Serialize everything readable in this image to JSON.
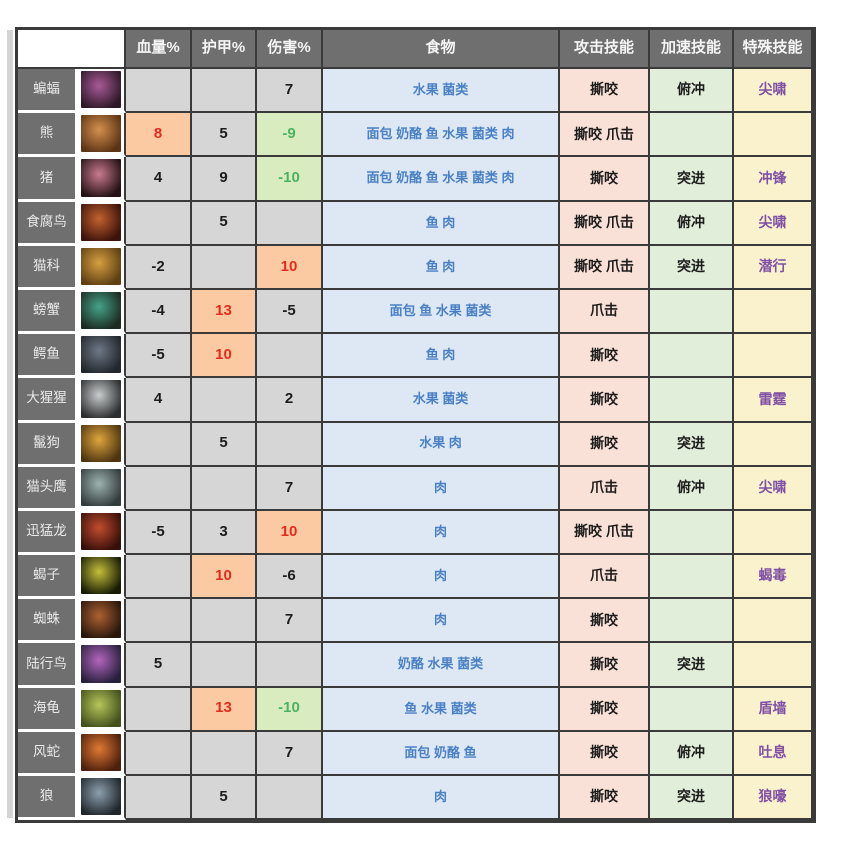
{
  "page": {
    "background": "#ffffff"
  },
  "colors": {
    "header_bg": "#6f6f6f",
    "header_text": "#f5f5f5",
    "label_bg": "#6f6f6f",
    "stat_bg": "#d6d6d6",
    "highlight_positive_bg": "#fbcaa2",
    "highlight_positive_text": "#e62b1e",
    "highlight_negative_bg": "#d9ecc0",
    "highlight_negative_text": "#4bb25f",
    "food_bg": "#dde8f4",
    "food_text": "#4a80c4",
    "attack_bg": "#fae1d7",
    "speed_bg": "#e0eeda",
    "special_bg": "#faf1cd",
    "special_text": "#8050a5",
    "grid_border": "#3a3a3a"
  },
  "table": {
    "headers": {
      "corner": "",
      "health": "血量%",
      "armor": "护甲%",
      "damage": "伤害%",
      "food": "食物",
      "attack": "攻击技能",
      "speed": "加速技能",
      "special": "特殊技能"
    },
    "rows": [
      {
        "name": "蝙蝠",
        "thumb_colors": [
          "#a85a96",
          "#2e1828"
        ],
        "health": "",
        "health_hl": "",
        "armor": "",
        "armor_hl": "",
        "damage": "7",
        "damage_hl": "",
        "food": "水果 菌类",
        "attack": "撕咬",
        "speed": "俯冲",
        "special": "尖啸"
      },
      {
        "name": "熊",
        "thumb_colors": [
          "#d4904e",
          "#5c3414"
        ],
        "health": "8",
        "health_hl": "pos",
        "armor": "5",
        "armor_hl": "",
        "damage": "-9",
        "damage_hl": "neg",
        "food": "面包 奶酪 鱼 水果 菌类 肉",
        "attack": "撕咬 爪击",
        "speed": "",
        "special": ""
      },
      {
        "name": "猪",
        "thumb_colors": [
          "#c97b8e",
          "#241015"
        ],
        "health": "4",
        "health_hl": "",
        "armor": "9",
        "armor_hl": "",
        "damage": "-10",
        "damage_hl": "neg",
        "food": "面包 奶酪 鱼 水果 菌类 肉",
        "attack": "撕咬",
        "speed": "突进",
        "special": "冲锋"
      },
      {
        "name": "食腐鸟",
        "thumb_colors": [
          "#c2622f",
          "#3c120a"
        ],
        "health": "",
        "health_hl": "",
        "armor": "5",
        "armor_hl": "",
        "damage": "",
        "damage_hl": "",
        "food": "鱼 肉",
        "attack": "撕咬 爪击",
        "speed": "俯冲",
        "special": "尖啸"
      },
      {
        "name": "猫科",
        "thumb_colors": [
          "#d6a041",
          "#5e3f12"
        ],
        "health": "-2",
        "health_hl": "",
        "armor": "",
        "armor_hl": "",
        "damage": "10",
        "damage_hl": "pos",
        "food": "鱼 肉",
        "attack": "撕咬 爪击",
        "speed": "突进",
        "special": "潜行"
      },
      {
        "name": "螃蟹",
        "thumb_colors": [
          "#45a287",
          "#1c2a22"
        ],
        "health": "-4",
        "health_hl": "",
        "armor": "13",
        "armor_hl": "pos",
        "damage": "-5",
        "damage_hl": "",
        "food": "面包 鱼 水果 菌类",
        "attack": "爪击",
        "speed": "",
        "special": ""
      },
      {
        "name": "鳄鱼",
        "thumb_colors": [
          "#6e7886",
          "#22262c"
        ],
        "health": "-5",
        "health_hl": "",
        "armor": "10",
        "armor_hl": "pos",
        "damage": "",
        "damage_hl": "",
        "food": "鱼 肉",
        "attack": "撕咬",
        "speed": "",
        "special": ""
      },
      {
        "name": "大猩猩",
        "thumb_colors": [
          "#c9ccce",
          "#2b2d2e"
        ],
        "health": "4",
        "health_hl": "",
        "armor": "",
        "armor_hl": "",
        "damage": "2",
        "damage_hl": "",
        "food": "水果 菌类",
        "attack": "撕咬",
        "speed": "",
        "special": "雷霆"
      },
      {
        "name": "鬣狗",
        "thumb_colors": [
          "#dfa63c",
          "#4e3410"
        ],
        "health": "",
        "health_hl": "",
        "armor": "5",
        "armor_hl": "",
        "damage": "",
        "damage_hl": "",
        "food": "水果 肉",
        "attack": "撕咬",
        "speed": "突进",
        "special": ""
      },
      {
        "name": "猫头鹰",
        "thumb_colors": [
          "#9db3b0",
          "#333c3c"
        ],
        "health": "",
        "health_hl": "",
        "armor": "",
        "armor_hl": "",
        "damage": "7",
        "damage_hl": "",
        "food": "肉",
        "attack": "爪击",
        "speed": "俯冲",
        "special": "尖啸"
      },
      {
        "name": "迅猛龙",
        "thumb_colors": [
          "#c14c2d",
          "#370f09"
        ],
        "health": "-5",
        "health_hl": "",
        "armor": "3",
        "armor_hl": "",
        "damage": "10",
        "damage_hl": "pos",
        "food": "肉",
        "attack": "撕咬 爪击",
        "speed": "",
        "special": ""
      },
      {
        "name": "蝎子",
        "thumb_colors": [
          "#c5bf3a",
          "#181c05"
        ],
        "health": "",
        "health_hl": "",
        "armor": "10",
        "armor_hl": "pos",
        "damage": "-6",
        "damage_hl": "",
        "food": "肉",
        "attack": "爪击",
        "speed": "",
        "special": "蝎毒"
      },
      {
        "name": "蜘蛛",
        "thumb_colors": [
          "#ad6130",
          "#28160b"
        ],
        "health": "",
        "health_hl": "",
        "armor": "",
        "armor_hl": "",
        "damage": "7",
        "damage_hl": "",
        "food": "肉",
        "attack": "撕咬",
        "speed": "",
        "special": ""
      },
      {
        "name": "陆行鸟",
        "thumb_colors": [
          "#b465bd",
          "#27203d"
        ],
        "health": "5",
        "health_hl": "",
        "armor": "",
        "armor_hl": "",
        "damage": "",
        "damage_hl": "",
        "food": "奶酪 水果 菌类",
        "attack": "撕咬",
        "speed": "突进",
        "special": ""
      },
      {
        "name": "海龟",
        "thumb_colors": [
          "#b7c659",
          "#42501c"
        ],
        "health": "",
        "health_hl": "",
        "armor": "13",
        "armor_hl": "pos",
        "damage": "-10",
        "damage_hl": "neg",
        "food": "鱼 水果 菌类",
        "attack": "撕咬",
        "speed": "",
        "special": "盾墙"
      },
      {
        "name": "风蛇",
        "thumb_colors": [
          "#df7a33",
          "#4e1f0c"
        ],
        "health": "",
        "health_hl": "",
        "armor": "",
        "armor_hl": "",
        "damage": "7",
        "damage_hl": "",
        "food": "面包 奶酪 鱼",
        "attack": "撕咬",
        "speed": "俯冲",
        "special": "吐息"
      },
      {
        "name": "狼",
        "thumb_colors": [
          "#8da0ae",
          "#20262c"
        ],
        "health": "",
        "health_hl": "",
        "armor": "5",
        "armor_hl": "",
        "damage": "",
        "damage_hl": "",
        "food": "肉",
        "attack": "撕咬",
        "speed": "突进",
        "special": "狼嚎"
      }
    ]
  }
}
